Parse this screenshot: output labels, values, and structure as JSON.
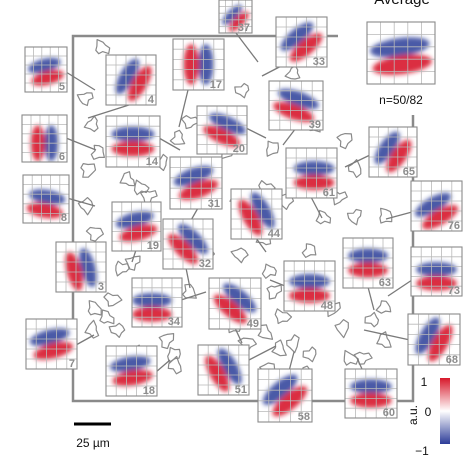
{
  "average": {
    "title": "Average",
    "count": "n=50/82"
  },
  "scale_bar": {
    "label": "25 µm"
  },
  "colorbar": {
    "unit": "a.u.",
    "max": "1",
    "mid": "0",
    "min": "−1",
    "high_color": "#d7192b",
    "low_color": "#2c3c98"
  },
  "cells": [
    {
      "id": "37",
      "angle": -45,
      "ox": 0.0,
      "oy": 0.05
    },
    {
      "id": "33",
      "angle": -40,
      "ox": 0.0,
      "oy": 0.0
    },
    {
      "id": "5",
      "angle": -15,
      "ox": 0.0,
      "oy": 0.05
    },
    {
      "id": "4",
      "angle": -60,
      "ox": 0.05,
      "oy": 0.0
    },
    {
      "id": "17",
      "angle": 90,
      "ox": 0.0,
      "oy": 0.0
    },
    {
      "id": "39",
      "angle": 20,
      "ox": 0.0,
      "oy": 0.0
    },
    {
      "id": "6",
      "angle": 90,
      "ox": 0.0,
      "oy": 0.1
    },
    {
      "id": "14",
      "angle": 0,
      "ox": 0.0,
      "oy": 0.0
    },
    {
      "id": "20",
      "angle": 25,
      "ox": 0.05,
      "oy": 0.0
    },
    {
      "id": "65",
      "angle": -55,
      "ox": 0.0,
      "oy": 0.0
    },
    {
      "id": "61",
      "angle": 0,
      "ox": 0.05,
      "oy": 0.05
    },
    {
      "id": "8",
      "angle": 10,
      "ox": 0.0,
      "oy": 0.1
    },
    {
      "id": "31",
      "angle": -20,
      "ox": 0.0,
      "oy": 0.0
    },
    {
      "id": "44",
      "angle": 60,
      "ox": 0.0,
      "oy": 0.0
    },
    {
      "id": "76",
      "angle": -30,
      "ox": 0.0,
      "oy": 0.1
    },
    {
      "id": "19",
      "angle": -15,
      "ox": 0.0,
      "oy": 0.0
    },
    {
      "id": "32",
      "angle": 45,
      "ox": 0.0,
      "oy": 0.0
    },
    {
      "id": "3",
      "angle": 75,
      "ox": 0.0,
      "oy": 0.05
    },
    {
      "id": "63",
      "angle": 0,
      "ox": 0.0,
      "oy": 0.0
    },
    {
      "id": "73",
      "angle": 0,
      "ox": 0.0,
      "oy": 0.1
    },
    {
      "id": "34",
      "angle": 0,
      "ox": -0.1,
      "oy": 0.1
    },
    {
      "id": "49",
      "angle": 40,
      "ox": 0.0,
      "oy": 0.0
    },
    {
      "id": "48",
      "angle": 0,
      "ox": 0.0,
      "oy": 0.05
    },
    {
      "id": "7",
      "angle": -15,
      "ox": 0.0,
      "oy": 0.0
    },
    {
      "id": "68",
      "angle": -60,
      "ox": 0.0,
      "oy": 0.0
    },
    {
      "id": "18",
      "angle": -10,
      "ox": 0.0,
      "oy": 0.0
    },
    {
      "id": "51",
      "angle": 60,
      "ox": 0.0,
      "oy": 0.0
    },
    {
      "id": "58",
      "angle": -40,
      "ox": 0.0,
      "oy": 0.0
    },
    {
      "id": "60",
      "angle": 0,
      "ox": 0.0,
      "oy": 0.0
    }
  ]
}
